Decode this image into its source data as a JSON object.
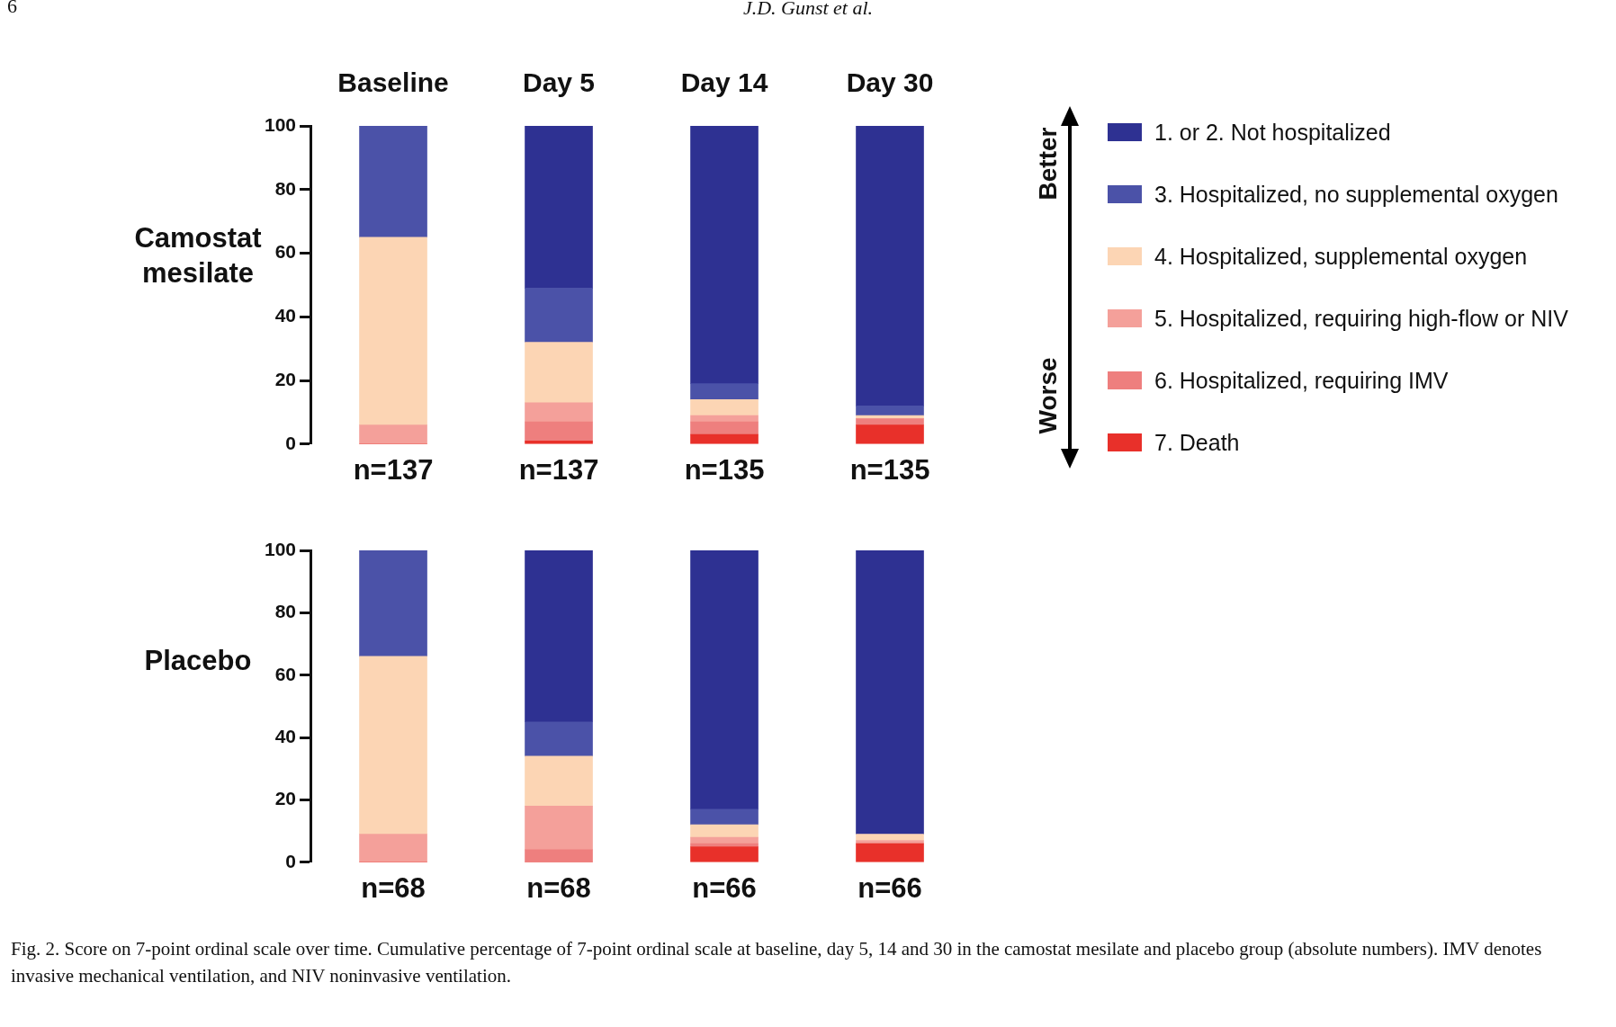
{
  "chart_data": [
    {
      "type": "bar",
      "stacked": true,
      "ylabel": "Camostat mesilate",
      "categories": [
        "n=137",
        "n=137",
        "n=135",
        "n=135"
      ],
      "series": [
        {
          "name": "7. Death",
          "color": "#e8302a",
          "values": [
            0,
            1,
            3,
            6
          ]
        },
        {
          "name": "6. Hospitalized, requiring IMV",
          "color": "#ee7f7e",
          "values": [
            0,
            6,
            4,
            2
          ]
        },
        {
          "name": "5. Hospitalized, requiring high-flow or NIV",
          "color": "#f4a09a",
          "values": [
            6,
            6,
            2,
            0
          ]
        },
        {
          "name": "4. Hospitalized, supplemental oxygen",
          "color": "#fcd5b4",
          "values": [
            59,
            19,
            5,
            1
          ]
        },
        {
          "name": "3. Hospitalized, no supplemental oxygen",
          "color": "#4b52a8",
          "values": [
            35,
            17,
            5,
            3
          ]
        },
        {
          "name": "1. or 2. Not hospitalized",
          "color": "#2e3192",
          "values": [
            0,
            51,
            81,
            88
          ]
        }
      ],
      "ylim": [
        0,
        100
      ],
      "yticks": [
        0,
        20,
        40,
        60,
        80,
        100
      ],
      "grid": false,
      "legend": "right",
      "annotations": [
        "6",
        "J.D. Gunst et al.",
        "Baseline",
        "Day 5",
        "Day 14",
        "Day 30",
        "Better",
        "Worse"
      ]
    },
    {
      "type": "bar",
      "stacked": true,
      "ylabel": "Placebo",
      "categories": [
        "n=68",
        "n=68",
        "n=66",
        "n=66"
      ],
      "series": [
        {
          "color": "#e8302a",
          "values": [
            0,
            0,
            5,
            6
          ]
        },
        {
          "color": "#ee7f7e",
          "values": [
            0,
            4,
            1,
            0
          ]
        },
        {
          "color": "#f4a09a",
          "values": [
            9,
            14,
            2,
            1
          ]
        },
        {
          "color": "#fcd5b4",
          "values": [
            57,
            16,
            4,
            2
          ]
        },
        {
          "color": "#4b52a8",
          "values": [
            34,
            11,
            5,
            0
          ]
        },
        {
          "color": "#2e3192",
          "values": [
            0,
            55,
            83,
            91
          ]
        }
      ],
      "ylim": [
        0,
        100
      ],
      "yticks": [
        0,
        20,
        40,
        60,
        80,
        100
      ],
      "grid": false,
      "annotations": [
        "Fig. 2. Score on 7-point ordinal scale over time. Cumulative percentage of 7-point ordinal scale at baseline, day 5, 14 and 30 in the camostat mesilate and placebo group (absolute numbers). IMV denotes invasive mechanical ventilation, and NIV noninvasive ventilation."
      ]
    }
  ]
}
